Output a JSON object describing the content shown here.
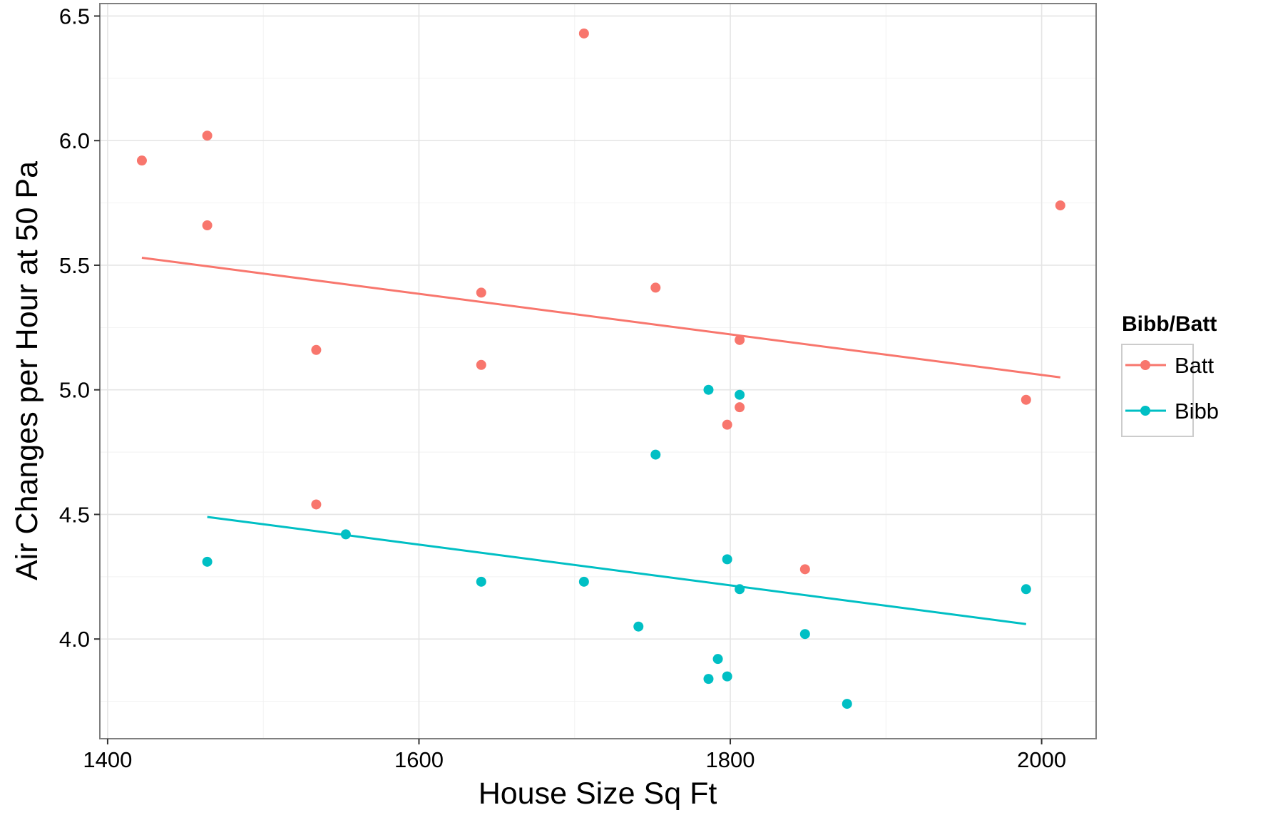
{
  "chart_data": {
    "type": "scatter",
    "title": "",
    "xlabel": "House Size Sq Ft",
    "ylabel": "Air Changes per Hour at 50 Pa",
    "xlim": [
      1395,
      2035
    ],
    "ylim": [
      3.6,
      6.55
    ],
    "x_ticks": [
      1400,
      1600,
      1800,
      2000
    ],
    "x_tick_labels": [
      "1400",
      "1600",
      "1800",
      "2000"
    ],
    "y_ticks": [
      4.0,
      4.5,
      5.0,
      5.5,
      6.0,
      6.5
    ],
    "y_tick_labels": [
      "4.0",
      "4.5",
      "5.0",
      "5.5",
      "6.0",
      "6.5"
    ],
    "grid": true,
    "legend": {
      "title": "Bibb/Batt",
      "position": "right"
    },
    "series": [
      {
        "name": "Batt",
        "color": "#F8766D",
        "points": [
          [
            1422,
            5.92
          ],
          [
            1464,
            6.02
          ],
          [
            1464,
            5.66
          ],
          [
            1534,
            5.16
          ],
          [
            1534,
            4.54
          ],
          [
            1640,
            5.39
          ],
          [
            1640,
            5.1
          ],
          [
            1706,
            6.43
          ],
          [
            1752,
            5.41
          ],
          [
            1798,
            4.86
          ],
          [
            1806,
            5.2
          ],
          [
            1806,
            4.93
          ],
          [
            1848,
            4.28
          ],
          [
            1990,
            4.96
          ],
          [
            2012,
            5.74
          ]
        ],
        "trend": {
          "x": [
            1422,
            2012
          ],
          "y": [
            5.53,
            5.05
          ]
        }
      },
      {
        "name": "Bibb",
        "color": "#00BFC4",
        "points": [
          [
            1464,
            4.31
          ],
          [
            1553,
            4.42
          ],
          [
            1640,
            4.23
          ],
          [
            1706,
            4.23
          ],
          [
            1741,
            4.05
          ],
          [
            1752,
            4.74
          ],
          [
            1786,
            5.0
          ],
          [
            1786,
            3.84
          ],
          [
            1792,
            3.92
          ],
          [
            1798,
            4.32
          ],
          [
            1798,
            3.85
          ],
          [
            1806,
            4.98
          ],
          [
            1806,
            4.2
          ],
          [
            1848,
            4.02
          ],
          [
            1875,
            3.74
          ],
          [
            1990,
            4.2
          ]
        ],
        "trend": {
          "x": [
            1464,
            1990
          ],
          "y": [
            4.49,
            4.06
          ]
        }
      }
    ]
  }
}
